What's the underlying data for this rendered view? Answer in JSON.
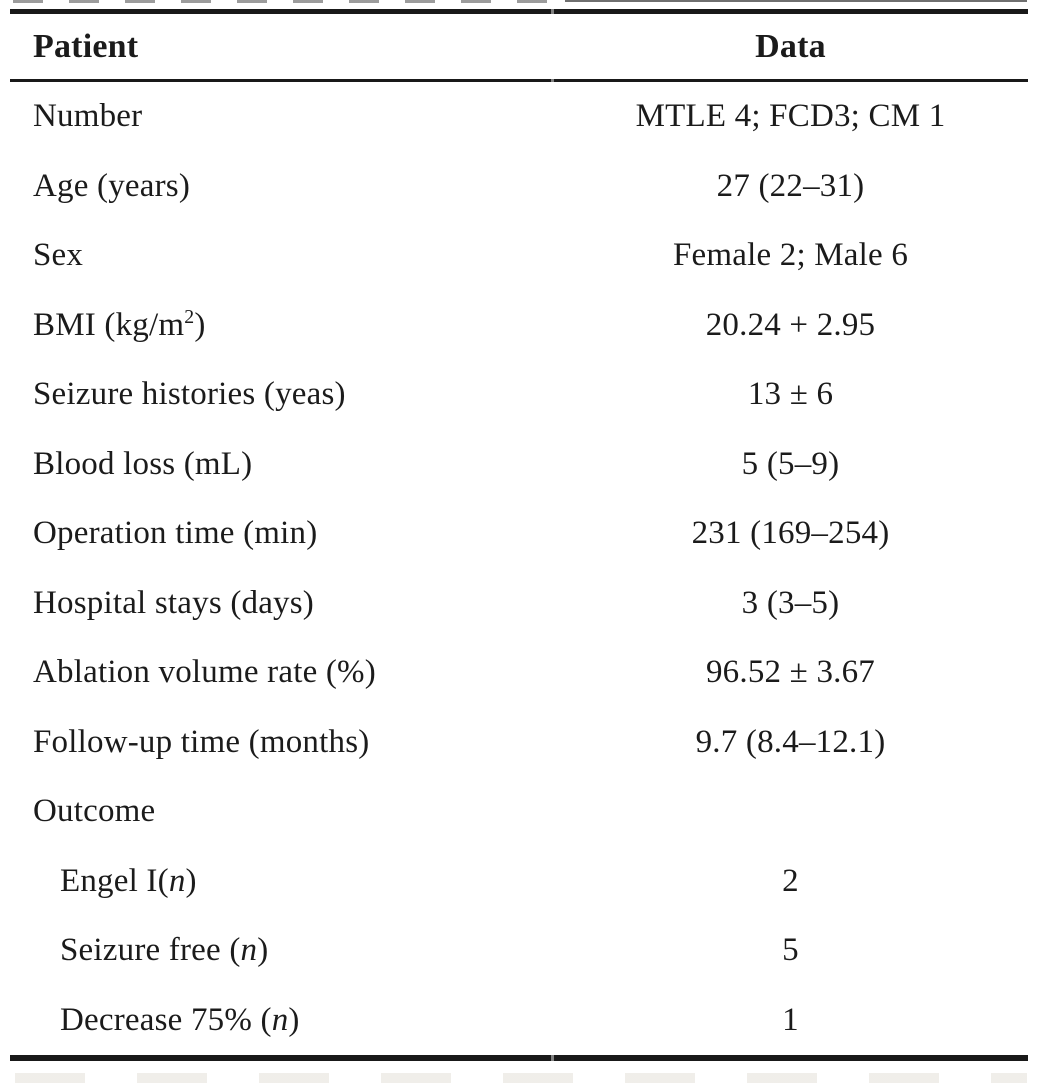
{
  "page": {
    "background": "#ffffff",
    "text_color": "#1b1b1b",
    "rule_color": "#191919"
  },
  "table": {
    "columns": [
      {
        "label": "Patient"
      },
      {
        "label": "Data"
      }
    ],
    "rows": [
      {
        "label_parts": [
          {
            "t": "Number"
          }
        ],
        "value": "MTLE 4; FCD3; CM 1",
        "indent": false
      },
      {
        "label_parts": [
          {
            "t": "Age (years)"
          }
        ],
        "value": "27 (22–31)",
        "indent": false
      },
      {
        "label_parts": [
          {
            "t": "Sex"
          }
        ],
        "value": "Female 2; Male 6",
        "indent": false
      },
      {
        "label_parts": [
          {
            "t": "BMI (kg/m"
          },
          {
            "t": "2",
            "s": "sup"
          },
          {
            "t": ")"
          }
        ],
        "value": "20.24 + 2.95",
        "indent": false
      },
      {
        "label_parts": [
          {
            "t": "Seizure histories (yeas)"
          }
        ],
        "value": "13 ± 6",
        "indent": false
      },
      {
        "label_parts": [
          {
            "t": "Blood loss (mL)"
          }
        ],
        "value": "5 (5–9)",
        "indent": false
      },
      {
        "label_parts": [
          {
            "t": "Operation time (min)"
          }
        ],
        "value": "231 (169–254)",
        "indent": false
      },
      {
        "label_parts": [
          {
            "t": "Hospital stays (days)"
          }
        ],
        "value": "3 (3–5)",
        "indent": false
      },
      {
        "label_parts": [
          {
            "t": "Ablation volume rate (%)"
          }
        ],
        "value": "96.52 ± 3.67",
        "indent": false
      },
      {
        "label_parts": [
          {
            "t": "Follow-up time (months)"
          }
        ],
        "value": "9.7 (8.4–12.1)",
        "indent": false
      },
      {
        "label_parts": [
          {
            "t": "Outcome"
          }
        ],
        "value": "",
        "indent": false
      },
      {
        "label_parts": [
          {
            "t": "Engel I("
          },
          {
            "t": "n",
            "s": "i"
          },
          {
            "t": ")"
          }
        ],
        "value": "2",
        "indent": true
      },
      {
        "label_parts": [
          {
            "t": "Seizure free ("
          },
          {
            "t": "n",
            "s": "i"
          },
          {
            "t": ")"
          }
        ],
        "value": "5",
        "indent": true
      },
      {
        "label_parts": [
          {
            "t": "Decrease 75% ("
          },
          {
            "t": "n",
            "s": "i"
          },
          {
            "t": ")"
          }
        ],
        "value": "1",
        "indent": true
      }
    ]
  }
}
